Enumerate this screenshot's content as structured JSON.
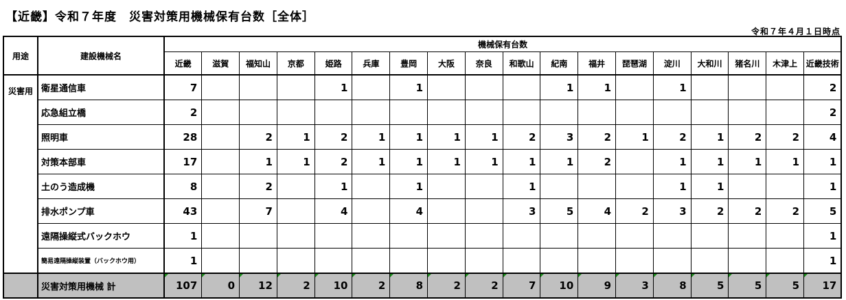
{
  "title": "【近畿】令和７年度　災害対策用機械保有台数［全体］",
  "as_of": "令和７年４月１日時点",
  "headers": {
    "use": "用途",
    "name": "建設機械名",
    "group": "機械保有台数",
    "offices": [
      "近畿",
      "滋賀",
      "福知山",
      "京都",
      "姫路",
      "兵庫",
      "豊岡",
      "大阪",
      "奈良",
      "和歌山",
      "紀南",
      "福井",
      "琵琶湖",
      "淀川",
      "大和川",
      "猪名川",
      "木津上",
      "近畿技術"
    ]
  },
  "use_label": "災害用",
  "rows": [
    {
      "name": "衛星通信車",
      "values": [
        "7",
        "",
        "",
        "",
        "1",
        "",
        "1",
        "",
        "",
        "",
        "1",
        "1",
        "",
        "1",
        "",
        "",
        "",
        "2"
      ]
    },
    {
      "name": "応急組立橋",
      "values": [
        "2",
        "",
        "",
        "",
        "",
        "",
        "",
        "",
        "",
        "",
        "",
        "",
        "",
        "",
        "",
        "",
        "",
        "2"
      ]
    },
    {
      "name": "照明車",
      "values": [
        "28",
        "",
        "2",
        "1",
        "2",
        "1",
        "1",
        "1",
        "1",
        "2",
        "3",
        "2",
        "1",
        "2",
        "1",
        "2",
        "2",
        "4"
      ]
    },
    {
      "name": "対策本部車",
      "values": [
        "17",
        "",
        "1",
        "1",
        "2",
        "1",
        "1",
        "1",
        "1",
        "1",
        "1",
        "2",
        "",
        "1",
        "1",
        "1",
        "1",
        "1"
      ]
    },
    {
      "name": "土のう造成機",
      "values": [
        "8",
        "",
        "2",
        "",
        "1",
        "",
        "1",
        "",
        "",
        "1",
        "",
        "",
        "",
        "1",
        "1",
        "",
        "",
        "1"
      ]
    },
    {
      "name": "排水ポンプ車",
      "values": [
        "43",
        "",
        "7",
        "",
        "4",
        "",
        "4",
        "",
        "",
        "3",
        "5",
        "4",
        "2",
        "3",
        "2",
        "2",
        "2",
        "5"
      ]
    },
    {
      "name": "遠隔操縦式バックホウ",
      "values": [
        "1",
        "",
        "",
        "",
        "",
        "",
        "",
        "",
        "",
        "",
        "",
        "",
        "",
        "",
        "",
        "",
        "",
        "1"
      ]
    },
    {
      "name": "簡易遠隔操縦装置（バックホウ用）",
      "values": [
        "1",
        "",
        "",
        "",
        "",
        "",
        "",
        "",
        "",
        "",
        "",
        "",
        "",
        "",
        "",
        "",
        "",
        "1"
      ]
    }
  ],
  "total": {
    "name": "災害対策用機械 計",
    "values": [
      "107",
      "0",
      "12",
      "2",
      "10",
      "2",
      "8",
      "2",
      "2",
      "7",
      "10",
      "9",
      "3",
      "8",
      "5",
      "5",
      "5",
      "17"
    ]
  }
}
